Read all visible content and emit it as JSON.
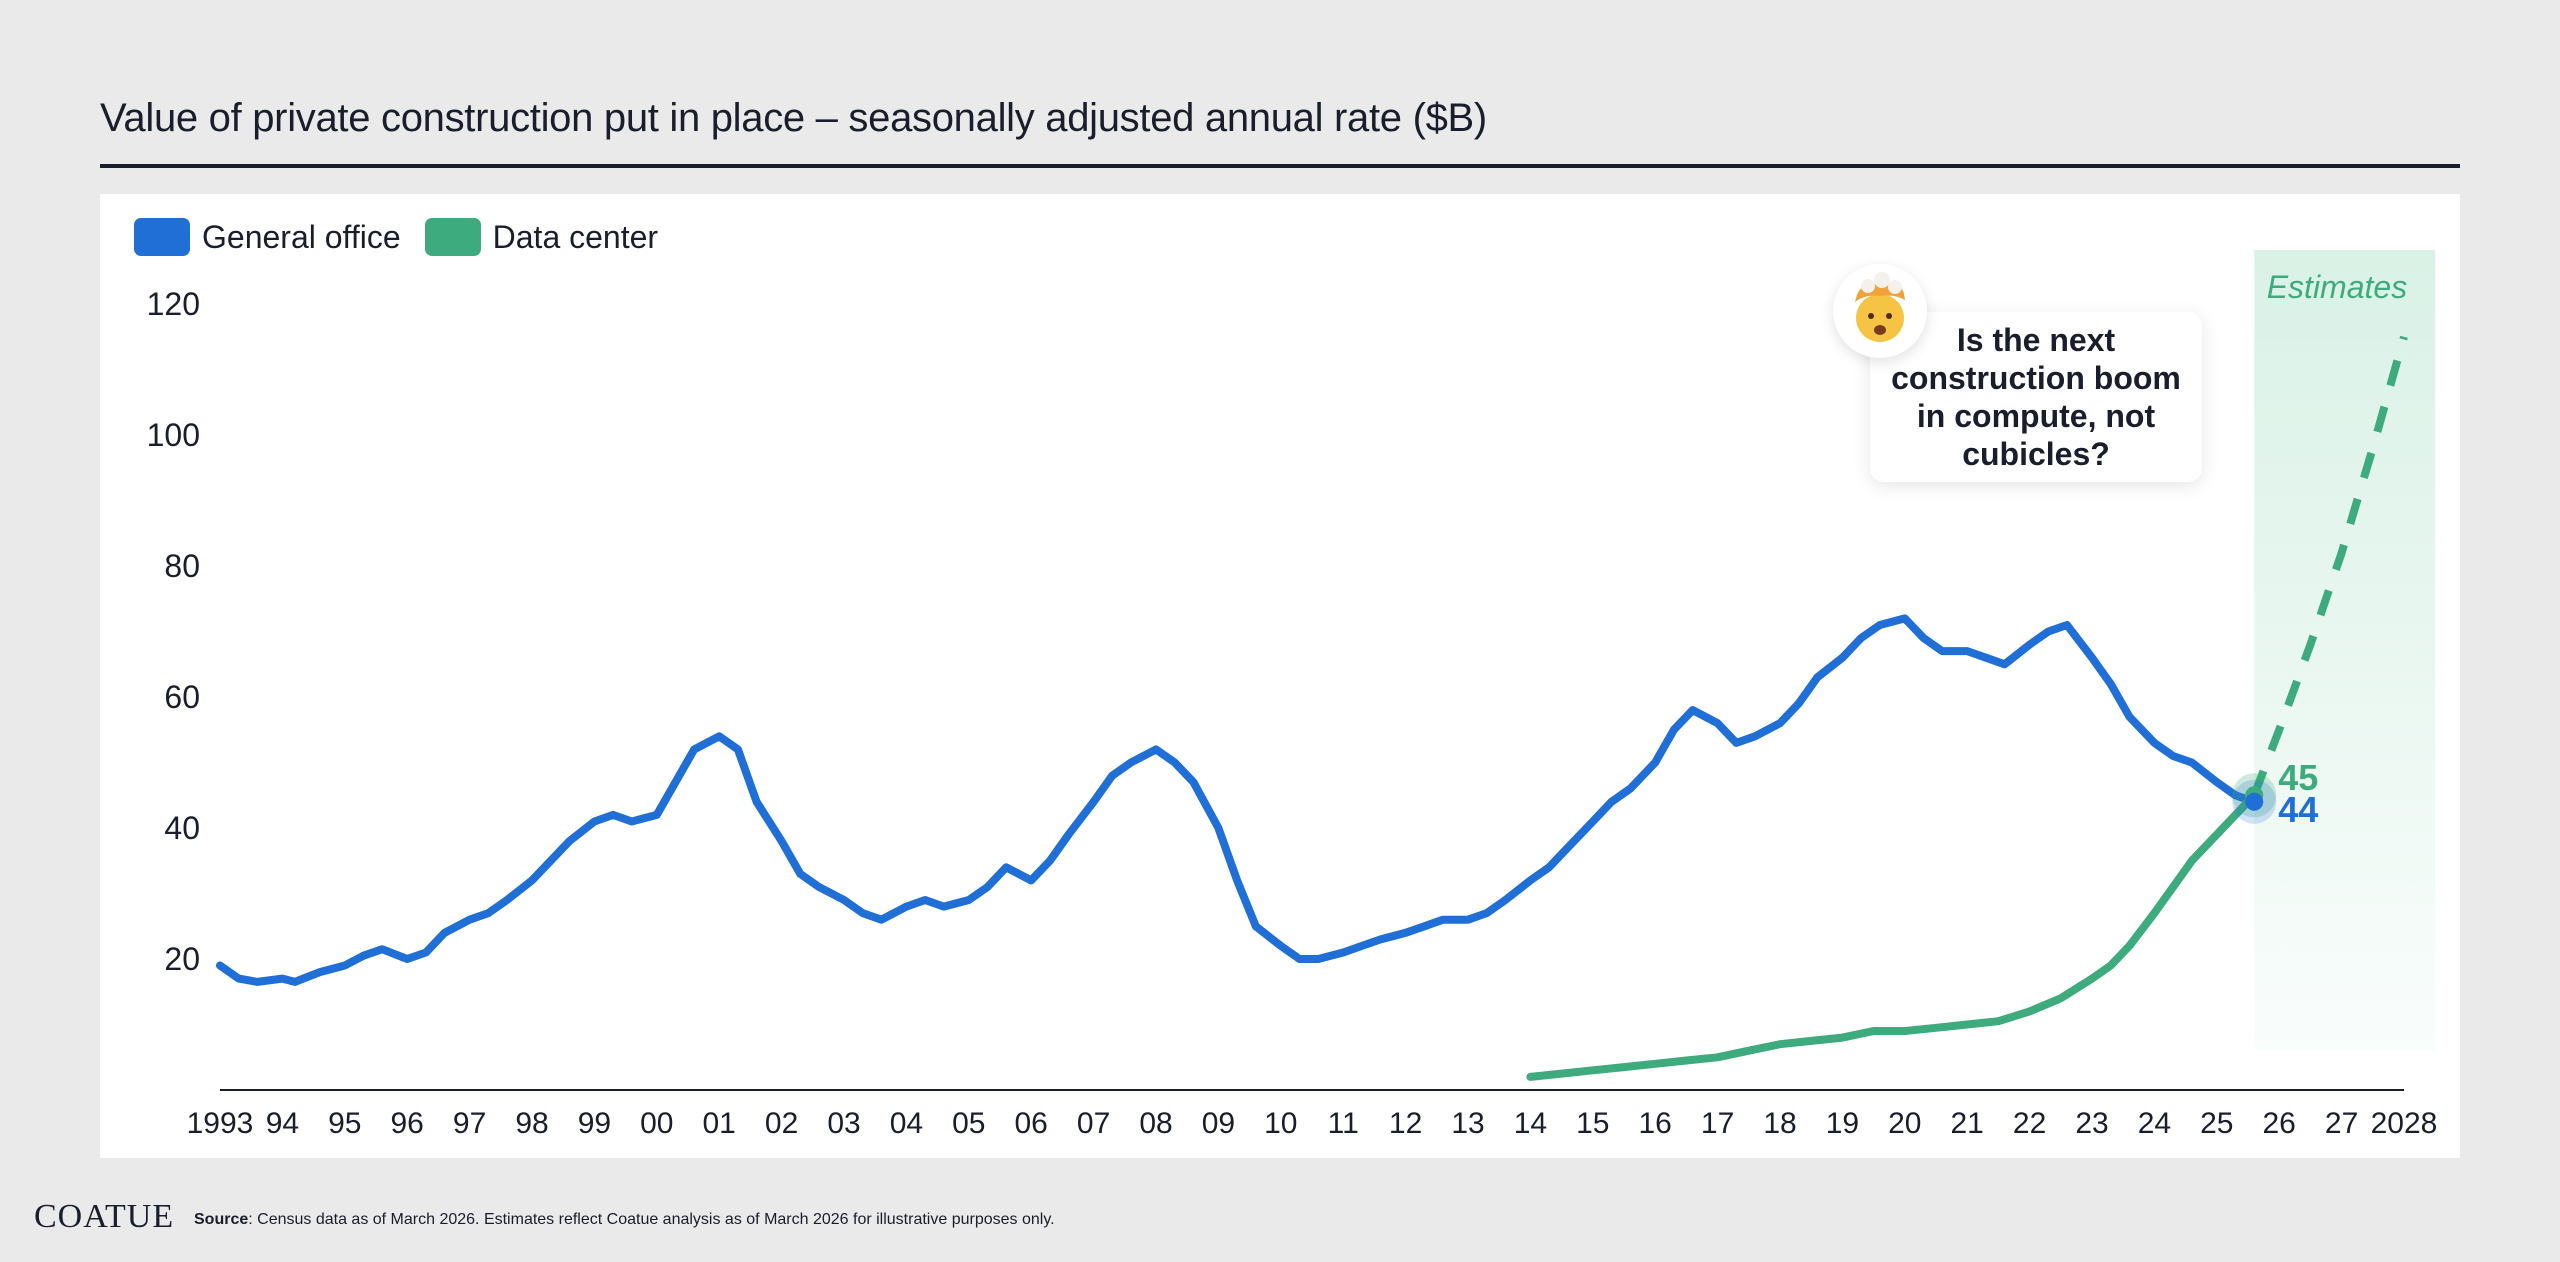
{
  "title": "Value of private construction put in place – seasonally adjusted annual rate ($B)",
  "legend": [
    {
      "label": "General office",
      "color": "#1f6fd6"
    },
    {
      "label": "Data center",
      "color": "#3dab7d"
    }
  ],
  "callout": {
    "text": "Is the next construction boom in compute, not cubicles?",
    "icon": "exploding-head-emoji-icon"
  },
  "footer": {
    "brand": "COATUE",
    "source_label": "Source",
    "source_text": ": Census data as of March 2026. Estimates reflect Coatue analysis as of March 2026 for illustrative purposes only."
  },
  "chart_data": {
    "type": "line",
    "title": "Value of private construction put in place – seasonally adjusted annual rate ($B)",
    "xlabel": "",
    "ylabel": "",
    "xlim": [
      1993,
      2028
    ],
    "ylim": [
      0,
      120
    ],
    "y_ticks": [
      20,
      40,
      60,
      80,
      100,
      120
    ],
    "x_ticks": [
      {
        "value": 1993,
        "label": "1993"
      },
      {
        "value": 1994,
        "label": "94"
      },
      {
        "value": 1995,
        "label": "95"
      },
      {
        "value": 1996,
        "label": "96"
      },
      {
        "value": 1997,
        "label": "97"
      },
      {
        "value": 1998,
        "label": "98"
      },
      {
        "value": 1999,
        "label": "99"
      },
      {
        "value": 2000,
        "label": "00"
      },
      {
        "value": 2001,
        "label": "01"
      },
      {
        "value": 2002,
        "label": "02"
      },
      {
        "value": 2003,
        "label": "03"
      },
      {
        "value": 2004,
        "label": "04"
      },
      {
        "value": 2005,
        "label": "05"
      },
      {
        "value": 2006,
        "label": "06"
      },
      {
        "value": 2007,
        "label": "07"
      },
      {
        "value": 2008,
        "label": "08"
      },
      {
        "value": 2009,
        "label": "09"
      },
      {
        "value": 2010,
        "label": "10"
      },
      {
        "value": 2011,
        "label": "11"
      },
      {
        "value": 2012,
        "label": "12"
      },
      {
        "value": 2013,
        "label": "13"
      },
      {
        "value": 2014,
        "label": "14"
      },
      {
        "value": 2015,
        "label": "15"
      },
      {
        "value": 2016,
        "label": "16"
      },
      {
        "value": 2017,
        "label": "17"
      },
      {
        "value": 2018,
        "label": "18"
      },
      {
        "value": 2019,
        "label": "19"
      },
      {
        "value": 2020,
        "label": "20"
      },
      {
        "value": 2021,
        "label": "21"
      },
      {
        "value": 2022,
        "label": "22"
      },
      {
        "value": 2023,
        "label": "23"
      },
      {
        "value": 2024,
        "label": "24"
      },
      {
        "value": 2025,
        "label": "25"
      },
      {
        "value": 2026,
        "label": "26"
      },
      {
        "value": 2027,
        "label": "27"
      },
      {
        "value": 2028,
        "label": "2028"
      }
    ],
    "estimates": {
      "label": "Estimates",
      "x_start": 2025.6,
      "x_end": 2028.5
    },
    "grid": false,
    "legend_position": "top-left",
    "series": [
      {
        "name": "General office",
        "color": "#1f6fd6",
        "x": [
          1993,
          1993.3,
          1993.6,
          1994,
          1994.2,
          1994.6,
          1995,
          1995.3,
          1995.6,
          1996,
          1996.3,
          1996.6,
          1997,
          1997.3,
          1997.6,
          1998,
          1998.3,
          1998.6,
          1999,
          1999.3,
          1999.6,
          2000,
          2000.3,
          2000.6,
          2001,
          2001.3,
          2001.6,
          2002,
          2002.3,
          2002.6,
          2003,
          2003.3,
          2003.6,
          2004,
          2004.3,
          2004.6,
          2005,
          2005.3,
          2005.6,
          2006,
          2006.3,
          2006.6,
          2007,
          2007.3,
          2007.6,
          2008,
          2008.3,
          2008.6,
          2009,
          2009.3,
          2009.6,
          2010,
          2010.3,
          2010.6,
          2011,
          2011.3,
          2011.6,
          2012,
          2012.3,
          2012.6,
          2013,
          2013.3,
          2013.6,
          2014,
          2014.3,
          2014.6,
          2015,
          2015.3,
          2015.6,
          2016,
          2016.3,
          2016.6,
          2017,
          2017.3,
          2017.6,
          2018,
          2018.3,
          2018.6,
          2019,
          2019.3,
          2019.6,
          2020,
          2020.3,
          2020.6,
          2021,
          2021.3,
          2021.6,
          2022,
          2022.3,
          2022.6,
          2023,
          2023.3,
          2023.6,
          2024,
          2024.3,
          2024.6,
          2025,
          2025.3,
          2025.6
        ],
        "values": [
          19,
          17,
          16.5,
          17,
          16.5,
          18,
          19,
          20.5,
          21.5,
          20,
          21,
          24,
          26,
          27,
          29,
          32,
          35,
          38,
          41,
          42,
          41,
          42,
          47,
          52,
          54,
          52,
          44,
          38,
          33,
          31,
          29,
          27,
          26,
          28,
          29,
          28,
          29,
          31,
          34,
          32,
          35,
          39,
          44,
          48,
          50,
          52,
          50,
          47,
          40,
          32,
          25,
          22,
          20,
          20,
          21,
          22,
          23,
          24,
          25,
          26,
          26,
          27,
          29,
          32,
          34,
          37,
          41,
          44,
          46,
          50,
          55,
          58,
          56,
          53,
          54,
          56,
          59,
          63,
          66,
          69,
          71,
          72,
          69,
          67,
          67,
          66,
          65,
          68,
          70,
          71,
          66,
          62,
          57,
          53,
          51,
          50,
          47,
          45,
          44
        ]
      },
      {
        "name": "Data center",
        "color": "#3dab7d",
        "x": [
          2014,
          2014.5,
          2015,
          2015.5,
          2016,
          2016.5,
          2017,
          2017.5,
          2018,
          2018.5,
          2019,
          2019.5,
          2020,
          2020.5,
          2021,
          2021.5,
          2022,
          2022.5,
          2023,
          2023.3,
          2023.6,
          2024,
          2024.3,
          2024.6,
          2025,
          2025.3,
          2025.6
        ],
        "values": [
          2,
          2.5,
          3,
          3.5,
          4,
          4.5,
          5,
          6,
          7,
          7.5,
          8,
          9,
          9,
          9.5,
          10,
          10.5,
          12,
          14,
          17,
          19,
          22,
          27,
          31,
          35,
          39,
          42,
          45
        ]
      },
      {
        "name": "Data center estimate",
        "color": "#3dab7d",
        "dashed": true,
        "x": [
          2025.6,
          2026,
          2026.5,
          2027,
          2027.5,
          2028
        ],
        "values": [
          45,
          55,
          68,
          82,
          98,
          115
        ]
      }
    ],
    "end_labels": [
      {
        "series": "Data center",
        "value": 45,
        "label": "45"
      },
      {
        "series": "General office",
        "value": 44,
        "label": "44"
      }
    ]
  }
}
